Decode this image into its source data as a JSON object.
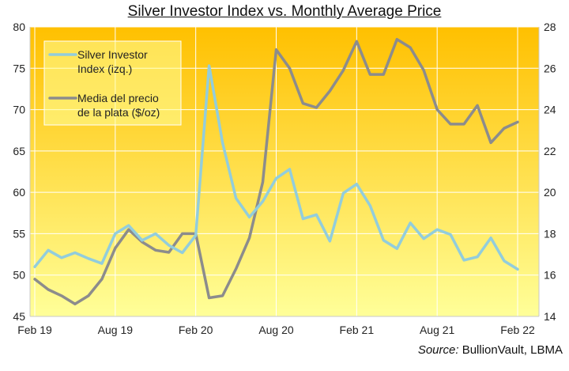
{
  "chart_data": {
    "type": "line",
    "title": "Silver Investor Index vs. Monthly Average Price",
    "x_tick_labels": [
      "Feb 19",
      "Aug 19",
      "Feb 20",
      "Aug 20",
      "Feb 21",
      "Aug 21",
      "Feb 22"
    ],
    "y_left": {
      "lim": [
        45,
        80
      ],
      "ticks": [
        45,
        50,
        55,
        60,
        65,
        70,
        75,
        80
      ]
    },
    "y_right": {
      "lim": [
        14,
        28
      ],
      "ticks": [
        14,
        16,
        18,
        20,
        22,
        24,
        26,
        28
      ]
    },
    "grid": true,
    "legend_position": "top-left",
    "background_gradient": [
      "#ffc000",
      "#ffff99"
    ],
    "series": [
      {
        "name": "Silver Investor Index (izq.)",
        "legend_lines": [
          "Silver Investor",
          "Index (izq.)"
        ],
        "axis": "left",
        "color": "#92cddc",
        "x": [
          "2019-02",
          "2019-03",
          "2019-04",
          "2019-05",
          "2019-06",
          "2019-07",
          "2019-08",
          "2019-09",
          "2019-10",
          "2019-11",
          "2019-12",
          "2020-01",
          "2020-02",
          "2020-03",
          "2020-04",
          "2020-05",
          "2020-06",
          "2020-07",
          "2020-08",
          "2020-09",
          "2020-10",
          "2020-11",
          "2020-12",
          "2021-01",
          "2021-02",
          "2021-03",
          "2021-04",
          "2021-05",
          "2021-06",
          "2021-07",
          "2021-08",
          "2021-09",
          "2021-10",
          "2021-11",
          "2021-12",
          "2022-01",
          "2022-02"
        ],
        "values": [
          51.0,
          53.0,
          52.1,
          52.7,
          52.0,
          51.4,
          55.0,
          56.0,
          54.2,
          55.0,
          53.6,
          52.7,
          54.8,
          75.3,
          66.0,
          59.3,
          57.0,
          58.9,
          61.7,
          62.8,
          56.8,
          57.3,
          54.1,
          59.9,
          61.0,
          58.4,
          54.2,
          53.2,
          56.3,
          54.4,
          55.5,
          54.9,
          51.8,
          52.2,
          54.5,
          51.7,
          50.7
        ]
      },
      {
        "name": "Media del precio de la plata ($/oz)",
        "legend_lines": [
          "Media del precio",
          "de la plata ($/oz)"
        ],
        "axis": "right",
        "color": "#8c8c8c",
        "x": [
          "2019-02",
          "2019-03",
          "2019-04",
          "2019-05",
          "2019-06",
          "2019-07",
          "2019-08",
          "2019-09",
          "2019-10",
          "2019-11",
          "2019-12",
          "2020-01",
          "2020-02",
          "2020-03",
          "2020-04",
          "2020-05",
          "2020-06",
          "2020-07",
          "2020-08",
          "2020-09",
          "2020-10",
          "2020-11",
          "2020-12",
          "2021-01",
          "2021-02",
          "2021-03",
          "2021-04",
          "2021-05",
          "2021-06",
          "2021-07",
          "2021-08",
          "2021-09",
          "2021-10",
          "2021-11",
          "2021-12",
          "2022-01",
          "2022-02"
        ],
        "values": [
          15.8,
          15.3,
          15.0,
          14.6,
          15.0,
          15.8,
          17.3,
          18.2,
          17.6,
          17.2,
          17.1,
          18.0,
          18.0,
          14.9,
          15.0,
          16.3,
          17.8,
          20.5,
          26.9,
          26.0,
          24.3,
          24.1,
          24.9,
          25.9,
          27.3,
          25.7,
          25.7,
          27.4,
          27.0,
          25.9,
          24.0,
          23.3,
          23.3,
          24.2,
          22.4,
          23.1,
          23.4
        ]
      }
    ]
  },
  "source": {
    "label": "Source:",
    "text": " BullionVault, LBMA"
  }
}
